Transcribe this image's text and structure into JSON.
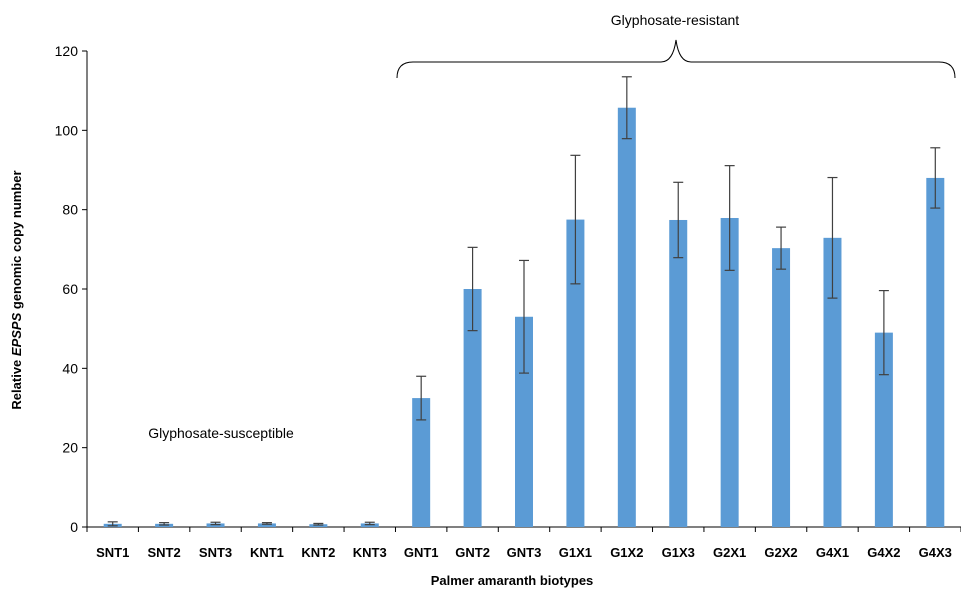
{
  "chart_data": {
    "type": "bar",
    "categories": [
      "SNT1",
      "SNT2",
      "SNT3",
      "KNT1",
      "KNT2",
      "KNT3",
      "GNT1",
      "GNT2",
      "GNT3",
      "G1X1",
      "G1X2",
      "G1X3",
      "G2X1",
      "G2X2",
      "G4X1",
      "G4X2",
      "G4X3"
    ],
    "values": [
      0.8,
      0.8,
      0.9,
      0.9,
      0.7,
      0.9,
      32.5,
      60,
      53,
      77.5,
      105.7,
      77.4,
      77.9,
      70.3,
      72.9,
      49,
      88
    ],
    "error": [
      0.5,
      0.3,
      0.3,
      0.2,
      0.2,
      0.3,
      5.5,
      10.5,
      14.2,
      16.2,
      7.8,
      9.5,
      13.2,
      5.3,
      15.2,
      10.6,
      7.6
    ],
    "xlabel": "Palmer amaranth biotypes",
    "ylabel_parts": [
      "Relative ",
      "EPSPS",
      " genomic copy number"
    ],
    "ylim": [
      0,
      120
    ],
    "yticks": [
      "0",
      "20",
      "40",
      "60",
      "80",
      "100",
      "120"
    ],
    "bar_color": "#5B9BD5",
    "error_color": "#404040",
    "grid": false,
    "annotations": {
      "resistant": "Glyphosate-resistant",
      "susceptible": "Glyphosate-susceptible"
    }
  }
}
